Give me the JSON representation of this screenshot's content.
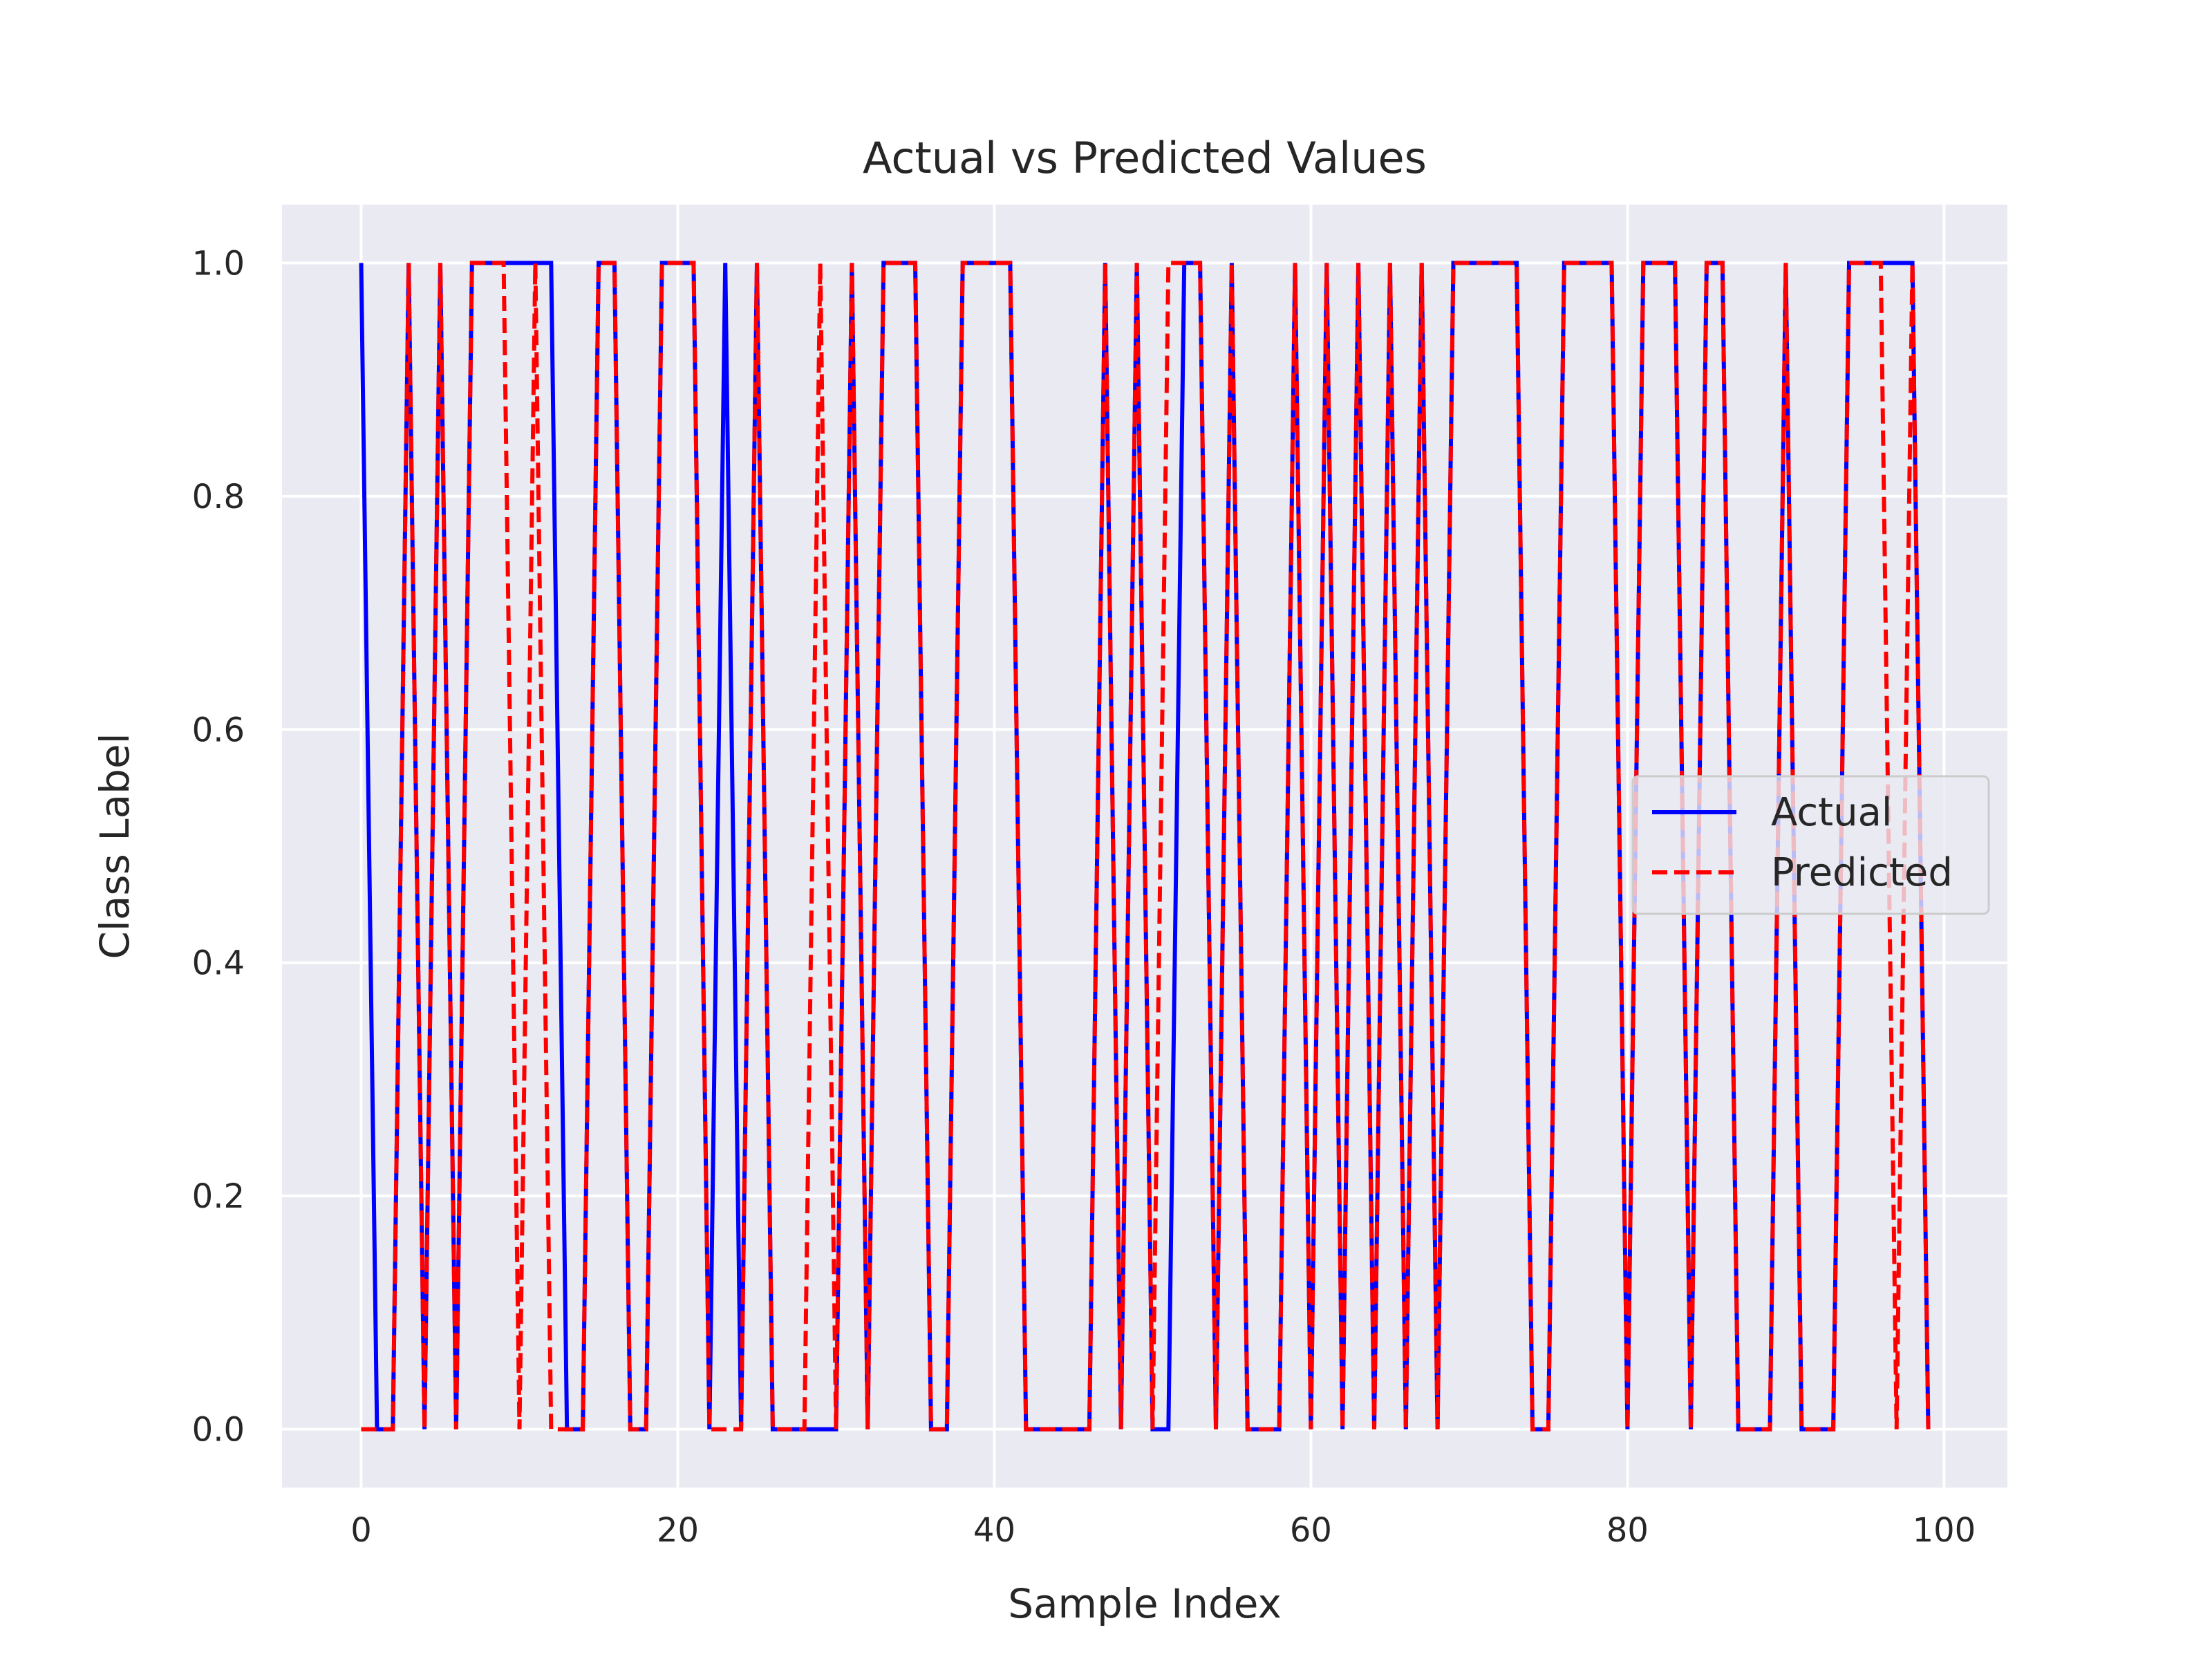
{
  "chart_data": {
    "type": "line",
    "title": "Actual vs Predicted Values",
    "xlabel": "Sample Index",
    "ylabel": "Class Label",
    "xlim": [
      -5,
      104
    ],
    "ylim": [
      -0.05,
      1.05
    ],
    "xticks": [
      0,
      20,
      40,
      60,
      80,
      100
    ],
    "yticks": [
      0.0,
      0.2,
      0.4,
      0.6,
      0.8,
      1.0
    ],
    "xtick_labels": [
      "0",
      "20",
      "40",
      "60",
      "80",
      "100"
    ],
    "ytick_labels": [
      "0.0",
      "0.2",
      "0.4",
      "0.6",
      "0.8",
      "1.0"
    ],
    "grid": true,
    "legend_position": "center-right",
    "series": [
      {
        "name": "Actual",
        "color": "#0000ff",
        "style": "solid",
        "x": [
          0,
          1,
          2,
          3,
          4,
          5,
          6,
          7,
          8,
          9,
          10,
          11,
          12,
          13,
          14,
          15,
          16,
          17,
          18,
          19,
          20,
          21,
          22,
          23,
          24,
          25,
          26,
          27,
          28,
          29,
          30,
          31,
          32,
          33,
          34,
          35,
          36,
          37,
          38,
          39,
          40,
          41,
          42,
          43,
          44,
          45,
          46,
          47,
          48,
          49,
          50,
          51,
          52,
          53,
          54,
          55,
          56,
          57,
          58,
          59,
          60,
          61,
          62,
          63,
          64,
          65,
          66,
          67,
          68,
          69,
          70,
          71,
          72,
          73,
          74,
          75,
          76,
          77,
          78,
          79,
          80,
          81,
          82,
          83,
          84,
          85,
          86,
          87,
          88,
          89,
          90,
          91,
          92,
          93,
          94,
          95,
          96,
          97,
          98,
          99
        ],
        "y": [
          1,
          0,
          0,
          1,
          0,
          1,
          0,
          1,
          1,
          1,
          1,
          1,
          1,
          0,
          0,
          1,
          1,
          0,
          0,
          1,
          1,
          1,
          0,
          1,
          0,
          1,
          0,
          0,
          0,
          0,
          0,
          1,
          0,
          1,
          1,
          1,
          0,
          0,
          1,
          1,
          1,
          1,
          0,
          0,
          0,
          0,
          0,
          1,
          0,
          1,
          0,
          0,
          1,
          1,
          0,
          1,
          0,
          0,
          0,
          1,
          0,
          1,
          0,
          1,
          0,
          1,
          0,
          1,
          0,
          1,
          1,
          1,
          1,
          1,
          0,
          0,
          1,
          1,
          1,
          1,
          0,
          1,
          1,
          1,
          0,
          1,
          1,
          0,
          0,
          0,
          1,
          0,
          0,
          0,
          1,
          1,
          1,
          1,
          1,
          0
        ]
      },
      {
        "name": "Predicted",
        "color": "#ff0000",
        "style": "dashed",
        "x": [
          0,
          1,
          2,
          3,
          4,
          5,
          6,
          7,
          8,
          9,
          10,
          11,
          12,
          13,
          14,
          15,
          16,
          17,
          18,
          19,
          20,
          21,
          22,
          23,
          24,
          25,
          26,
          27,
          28,
          29,
          30,
          31,
          32,
          33,
          34,
          35,
          36,
          37,
          38,
          39,
          40,
          41,
          42,
          43,
          44,
          45,
          46,
          47,
          48,
          49,
          50,
          51,
          52,
          53,
          54,
          55,
          56,
          57,
          58,
          59,
          60,
          61,
          62,
          63,
          64,
          65,
          66,
          67,
          68,
          69,
          70,
          71,
          72,
          73,
          74,
          75,
          76,
          77,
          78,
          79,
          80,
          81,
          82,
          83,
          84,
          85,
          86,
          87,
          88,
          89,
          90,
          91,
          92,
          93,
          94,
          95,
          96,
          97,
          98,
          99
        ],
        "y": [
          0,
          0,
          0,
          1,
          0,
          1,
          0,
          1,
          1,
          1,
          0,
          1,
          0,
          0,
          0,
          1,
          1,
          0,
          0,
          1,
          1,
          1,
          0,
          0,
          0,
          1,
          0,
          0,
          0,
          1,
          0,
          1,
          0,
          1,
          1,
          1,
          0,
          0,
          1,
          1,
          1,
          1,
          0,
          0,
          0,
          0,
          0,
          1,
          0,
          1,
          0,
          1,
          1,
          1,
          0,
          1,
          0,
          0,
          0,
          1,
          0,
          1,
          0,
          1,
          0,
          1,
          0,
          1,
          0,
          1,
          1,
          1,
          1,
          1,
          0,
          0,
          1,
          1,
          1,
          1,
          0,
          1,
          1,
          1,
          0,
          1,
          1,
          0,
          0,
          0,
          1,
          0,
          0,
          0,
          1,
          1,
          1,
          0,
          1,
          0
        ]
      }
    ]
  }
}
